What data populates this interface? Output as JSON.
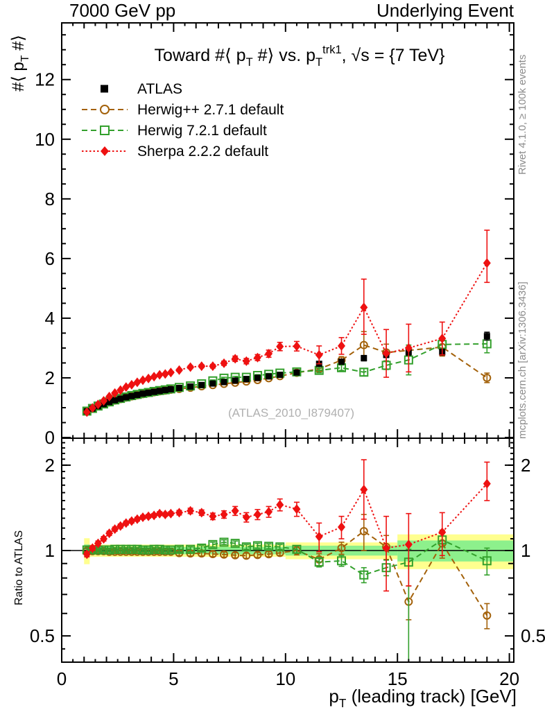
{
  "header": {
    "left": "7000 GeV pp",
    "right": "Underlying Event"
  },
  "watermark": "(ATLAS_2010_I879407)",
  "side_text_top": "Rivet 4.1.0, ≥ 100k events",
  "side_text_bottom": "mcplots.cern.ch [arXiv:1306.3436]",
  "axes": {
    "title_parts": [
      {
        "t": "Toward #⟨ p"
      },
      {
        "t": "T",
        "pos": "sub"
      },
      {
        "t": " #⟩ vs. p"
      },
      {
        "t": "T",
        "pos": "sub"
      },
      {
        "t": "trk1",
        "pos": "sup"
      },
      {
        "t": ", √s = {7 TeV}"
      }
    ],
    "x_label_parts": [
      {
        "t": "p"
      },
      {
        "t": "T",
        "pos": "sub"
      },
      {
        "t": " (leading track) [GeV]"
      }
    ],
    "main_y_label_parts": [
      {
        "t": "#⟨ p"
      },
      {
        "t": "T",
        "pos": "sub"
      },
      {
        "t": " #⟩"
      }
    ],
    "ratio_y_label": "Ratio to ATLAS",
    "x_range": [
      0,
      20.2
    ],
    "x_major_ticks": [
      0,
      5,
      10,
      15,
      20
    ],
    "x_major_labels": [
      "0",
      "5",
      "10",
      "15",
      "20"
    ],
    "main_y_range": [
      0,
      13.9
    ],
    "main_y_major_ticks": [
      0,
      2,
      4,
      6,
      8,
      10,
      12
    ],
    "main_y_major_labels": [
      "0",
      "2",
      "4",
      "6",
      "8",
      "10",
      "12"
    ],
    "ratio_y_range": [
      0.405,
      2.49
    ],
    "ratio_log": true,
    "ratio_y_major_ticks": [
      0.5,
      1,
      2
    ],
    "ratio_y_major_labels": [
      "0.5",
      "1",
      "2"
    ],
    "ratio_y_medium_ticks": [
      0.6,
      0.7,
      0.8,
      0.9,
      2.0
    ],
    "ratio_y_minor_ticks": [
      0.45,
      1.1,
      1.2,
      1.3,
      1.4,
      1.5,
      1.6,
      1.7,
      1.8,
      1.9,
      2.1,
      2.2,
      2.3,
      2.4
    ]
  },
  "colors": {
    "atlas": "#000000",
    "herwigpp": "#a3610a",
    "herwig7": "#33a02c",
    "sherpa": "#ee1111",
    "band_yellow": "#ffff8f",
    "band_green": "#8df08c",
    "gray_text": "#8c8c8c",
    "watermark_gray": "#b0b0b0"
  },
  "chart_data": {
    "type": "scatter",
    "title": "Toward #< pT #> vs. pT trk1, sqrt(s) = {7 TeV}",
    "xlabel": "pT (leading track) [GeV]",
    "ylabel_main": "#< pT #>",
    "ylabel_ratio": "Ratio to ATLAS",
    "x_range": [
      0,
      20.2
    ],
    "main_y_range": [
      0,
      13.9
    ],
    "ratio_y_range_log": [
      0.405,
      2.49
    ],
    "legend_position": "top-left",
    "x": [
      1.125,
      1.375,
      1.625,
      1.875,
      2.125,
      2.375,
      2.625,
      2.875,
      3.125,
      3.375,
      3.625,
      3.875,
      4.125,
      4.375,
      4.625,
      4.875,
      5.25,
      5.75,
      6.25,
      6.75,
      7.25,
      7.75,
      8.25,
      8.75,
      9.25,
      9.75,
      10.5,
      11.5,
      12.5,
      13.5,
      14.5,
      15.5,
      17,
      19
    ],
    "series": [
      {
        "name": "ATLAS",
        "key": "atlas",
        "marker": "filled-square",
        "line": "none",
        "color": "#000000",
        "values": [
          0.88,
          0.97,
          1.05,
          1.12,
          1.19,
          1.25,
          1.3,
          1.35,
          1.39,
          1.43,
          1.47,
          1.5,
          1.53,
          1.56,
          1.59,
          1.62,
          1.66,
          1.71,
          1.76,
          1.81,
          1.86,
          1.91,
          1.96,
          2.0,
          2.05,
          2.1,
          2.18,
          2.47,
          2.54,
          2.66,
          2.77,
          2.86,
          2.86,
          3.4
        ],
        "errors": [
          0.015,
          0.015,
          0.015,
          0.015,
          0.015,
          0.015,
          0.015,
          0.015,
          0.015,
          0.015,
          0.015,
          0.015,
          0.015,
          0.015,
          0.015,
          0.015,
          0.02,
          0.02,
          0.025,
          0.025,
          0.03,
          0.03,
          0.035,
          0.035,
          0.04,
          0.04,
          0.05,
          0.07,
          0.07,
          0.09,
          0.09,
          0.1,
          0.1,
          0.13
        ]
      },
      {
        "name": "Herwig++ 2.7.1 default",
        "key": "herwigpp",
        "marker": "open-circle",
        "line": "dashed",
        "color": "#a3610a",
        "values": [
          0.88,
          0.965,
          1.045,
          1.115,
          1.18,
          1.24,
          1.29,
          1.34,
          1.38,
          1.42,
          1.455,
          1.49,
          1.52,
          1.55,
          1.575,
          1.605,
          1.63,
          1.67,
          1.72,
          1.76,
          1.8,
          1.84,
          1.88,
          1.93,
          1.99,
          2.06,
          2.17,
          2.3,
          2.59,
          3.1,
          2.85,
          null,
          3.03,
          2.0
        ],
        "errors": [
          0.015,
          0.015,
          0.015,
          0.015,
          0.015,
          0.015,
          0.015,
          0.015,
          0.015,
          0.015,
          0.015,
          0.015,
          0.015,
          0.015,
          0.015,
          0.015,
          0.03,
          0.03,
          0.03,
          0.03,
          0.03,
          0.03,
          0.03,
          0.03,
          0.03,
          0.03,
          0.06,
          0.09,
          0.12,
          0.45,
          0.28,
          null,
          0.3,
          0.16
        ],
        "ratio": [
          1.0,
          0.995,
          0.995,
          0.995,
          0.99,
          0.99,
          0.99,
          0.99,
          0.99,
          0.99,
          0.99,
          0.99,
          0.99,
          0.99,
          0.99,
          0.99,
          0.98,
          0.977,
          0.977,
          0.972,
          0.968,
          0.963,
          0.959,
          0.965,
          0.971,
          0.981,
          1.0,
          0.93,
          1.02,
          1.17,
          1.03,
          0.66,
          1.06,
          0.59
        ],
        "ratio_errors": [
          0.015,
          0.015,
          0.015,
          0.015,
          0.015,
          0.015,
          0.015,
          0.015,
          0.015,
          0.015,
          0.015,
          0.015,
          0.015,
          0.015,
          0.015,
          0.015,
          0.02,
          0.02,
          0.02,
          0.02,
          0.02,
          0.02,
          0.02,
          0.02,
          0.02,
          0.02,
          0.035,
          0.045,
          0.05,
          0.17,
          0.1,
          0.09,
          0.12,
          0.06
        ]
      },
      {
        "name": "Herwig 7.2.1 default",
        "key": "herwig7",
        "marker": "open-square",
        "line": "dashed",
        "color": "#33a02c",
        "values": [
          0.885,
          0.975,
          1.055,
          1.125,
          1.195,
          1.26,
          1.31,
          1.36,
          1.405,
          1.445,
          1.48,
          1.51,
          1.545,
          1.575,
          1.6,
          1.63,
          1.68,
          1.73,
          1.8,
          1.9,
          1.99,
          2.02,
          2.02,
          2.08,
          2.12,
          2.16,
          2.2,
          2.25,
          2.34,
          2.19,
          2.42,
          2.6,
          3.12,
          3.14
        ],
        "errors": [
          0.015,
          0.015,
          0.015,
          0.015,
          0.015,
          0.015,
          0.015,
          0.015,
          0.015,
          0.015,
          0.015,
          0.015,
          0.015,
          0.015,
          0.015,
          0.015,
          0.03,
          0.03,
          0.03,
          0.03,
          0.03,
          0.03,
          0.03,
          0.03,
          0.03,
          0.03,
          0.06,
          0.08,
          0.09,
          0.12,
          0.14,
          0.5,
          0.15,
          0.3
        ],
        "ratio": [
          1.005,
          1.005,
          1.005,
          1.005,
          1.005,
          1.01,
          1.01,
          1.01,
          1.01,
          1.01,
          1.005,
          1.005,
          1.01,
          1.01,
          1.005,
          1.005,
          1.01,
          1.01,
          1.02,
          1.05,
          1.07,
          1.06,
          1.03,
          1.04,
          1.035,
          1.03,
          1.01,
          0.91,
          0.92,
          0.82,
          0.87,
          0.91,
          1.09,
          0.92
        ],
        "ratio_errors": [
          0.015,
          0.015,
          0.015,
          0.015,
          0.015,
          0.015,
          0.015,
          0.015,
          0.015,
          0.015,
          0.015,
          0.015,
          0.015,
          0.015,
          0.015,
          0.015,
          0.02,
          0.02,
          0.02,
          0.02,
          0.02,
          0.02,
          0.02,
          0.02,
          0.02,
          0.02,
          0.03,
          0.035,
          0.04,
          0.05,
          0.055,
          [
            0.1,
            0.6
          ],
          0.06,
          0.1
        ]
      },
      {
        "name": "Sherpa 2.2.2 default",
        "key": "sherpa",
        "marker": "filled-diamond",
        "line": "dotted",
        "color": "#ee1111",
        "values": [
          0.85,
          0.99,
          1.11,
          1.23,
          1.37,
          1.49,
          1.59,
          1.69,
          1.77,
          1.85,
          1.92,
          1.98,
          2.04,
          2.1,
          2.13,
          2.18,
          2.26,
          2.36,
          2.39,
          2.39,
          2.49,
          2.64,
          2.56,
          2.68,
          2.81,
          3.05,
          3.06,
          2.77,
          3.07,
          4.36,
          2.82,
          3.0,
          3.32,
          5.85
        ],
        "errors": [
          0.02,
          0.02,
          0.02,
          0.02,
          0.02,
          0.02,
          0.02,
          0.02,
          0.02,
          0.02,
          0.02,
          0.02,
          0.02,
          0.02,
          0.02,
          0.02,
          0.04,
          0.05,
          0.05,
          0.06,
          0.07,
          0.09,
          0.09,
          0.1,
          0.12,
          0.14,
          0.16,
          0.3,
          0.28,
          [
            0.95,
            0.9
          ],
          0.8,
          0.8,
          0.55,
          [
            1.1,
            0.65
          ]
        ],
        "ratio": [
          0.97,
          1.02,
          1.06,
          1.1,
          1.15,
          1.19,
          1.22,
          1.25,
          1.27,
          1.29,
          1.31,
          1.32,
          1.33,
          1.35,
          1.34,
          1.35,
          1.36,
          1.38,
          1.36,
          1.32,
          1.34,
          1.38,
          1.31,
          1.34,
          1.37,
          1.45,
          1.4,
          1.12,
          1.21,
          1.64,
          1.02,
          1.05,
          1.16,
          1.72
        ],
        "ratio_errors": [
          0.02,
          0.02,
          0.02,
          0.02,
          0.02,
          0.02,
          0.02,
          0.02,
          0.02,
          0.02,
          0.02,
          0.02,
          0.02,
          0.02,
          0.02,
          0.02,
          0.025,
          0.03,
          0.03,
          0.035,
          0.04,
          0.05,
          0.05,
          0.055,
          0.06,
          0.07,
          0.08,
          0.13,
          0.11,
          [
            0.45,
            0.35
          ],
          0.3,
          0.3,
          0.2,
          [
            0.33,
            0.22
          ]
        ]
      }
    ],
    "ratio_reference": 1,
    "ratio_bands": {
      "segments": [
        {
          "x0": 1.0,
          "x1": 1.25,
          "yellow": 0.105,
          "green": 0.05
        },
        {
          "x0": 1.25,
          "x1": 10.0,
          "yellow": 0.05,
          "green": 0.03
        },
        {
          "x0": 10.0,
          "x1": 15.0,
          "yellow": 0.068,
          "green": 0.04
        },
        {
          "x0": 15.0,
          "x1": 20.2,
          "yellow": 0.14,
          "green": 0.085
        }
      ]
    },
    "legend": [
      {
        "label": "ATLAS",
        "series": "atlas"
      },
      {
        "label": "Herwig++ 2.7.1 default",
        "series": "herwigpp"
      },
      {
        "label": "Herwig 7.2.1 default",
        "series": "herwig7"
      },
      {
        "label": "Sherpa 2.2.2 default",
        "series": "sherpa"
      }
    ]
  }
}
